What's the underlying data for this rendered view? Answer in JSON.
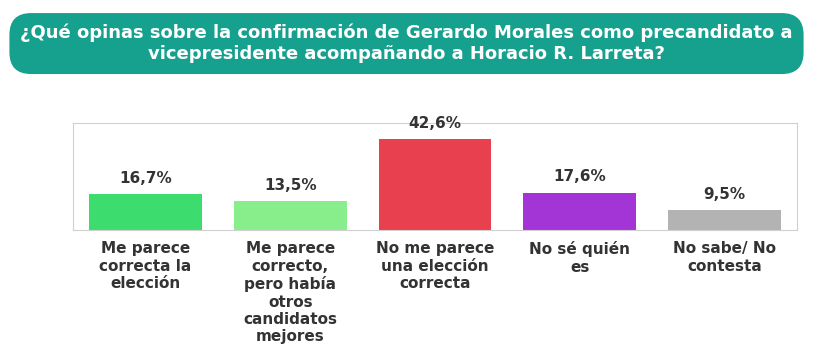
{
  "chart_data": {
    "type": "bar",
    "title": "¿Qué opinas sobre la confirmación de Gerardo Morales como precandidato a vicepresidente acompañando a Horacio R. Larreta?",
    "categories": [
      "Me parece correcta la elección",
      "Me parece correcto, pero había otros candidatos mejores",
      "No me parece una elección correcta",
      "No sé quién es",
      "No sabe/ No contesta"
    ],
    "values": [
      16.7,
      13.5,
      42.6,
      17.6,
      9.5
    ],
    "value_labels": [
      "16,7%",
      "13,5%",
      "42,6%",
      "17,6%",
      "9,5%"
    ],
    "colors": [
      "#3ddc6f",
      "#88ee8c",
      "#e8404f",
      "#a335d6",
      "#b3b3b3"
    ],
    "data_labels": true,
    "tick_labels": "x",
    "ylim": [
      0,
      50
    ],
    "grid": false
  }
}
